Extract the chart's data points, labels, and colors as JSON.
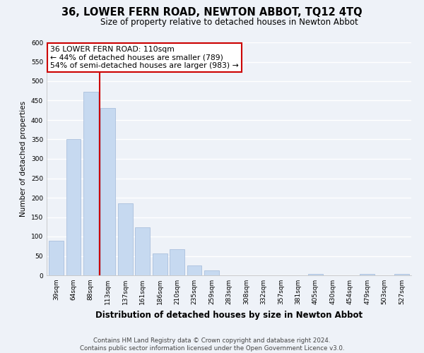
{
  "title": "36, LOWER FERN ROAD, NEWTON ABBOT, TQ12 4TQ",
  "subtitle": "Size of property relative to detached houses in Newton Abbot",
  "xlabel": "Distribution of detached houses by size in Newton Abbot",
  "ylabel": "Number of detached properties",
  "bar_labels": [
    "39sqm",
    "64sqm",
    "88sqm",
    "113sqm",
    "137sqm",
    "161sqm",
    "186sqm",
    "210sqm",
    "235sqm",
    "259sqm",
    "283sqm",
    "308sqm",
    "332sqm",
    "357sqm",
    "381sqm",
    "405sqm",
    "430sqm",
    "454sqm",
    "479sqm",
    "503sqm",
    "527sqm"
  ],
  "bar_values": [
    90,
    350,
    472,
    430,
    185,
    123,
    57,
    68,
    25,
    12,
    0,
    0,
    0,
    0,
    0,
    3,
    0,
    0,
    3,
    0,
    3
  ],
  "bar_color": "#c6d9f0",
  "bar_edge_color": "#a0b8d8",
  "highlight_line_color": "#cc0000",
  "ylim": [
    0,
    600
  ],
  "yticks": [
    0,
    50,
    100,
    150,
    200,
    250,
    300,
    350,
    400,
    450,
    500,
    550,
    600
  ],
  "annotation_title": "36 LOWER FERN ROAD: 110sqm",
  "annotation_line1": "← 44% of detached houses are smaller (789)",
  "annotation_line2": "54% of semi-detached houses are larger (983) →",
  "annotation_box_color": "#ffffff",
  "annotation_box_edge": "#cc0000",
  "footer_line1": "Contains HM Land Registry data © Crown copyright and database right 2024.",
  "footer_line2": "Contains public sector information licensed under the Open Government Licence v3.0.",
  "bg_color": "#eef2f8",
  "plot_bg_color": "#eef2f8",
  "grid_color": "#ffffff",
  "title_fontsize": 10.5,
  "subtitle_fontsize": 8.5,
  "xlabel_fontsize": 8.5,
  "ylabel_fontsize": 7.5,
  "tick_fontsize": 6.5,
  "annotation_fontsize": 7.8,
  "footer_fontsize": 6.2
}
